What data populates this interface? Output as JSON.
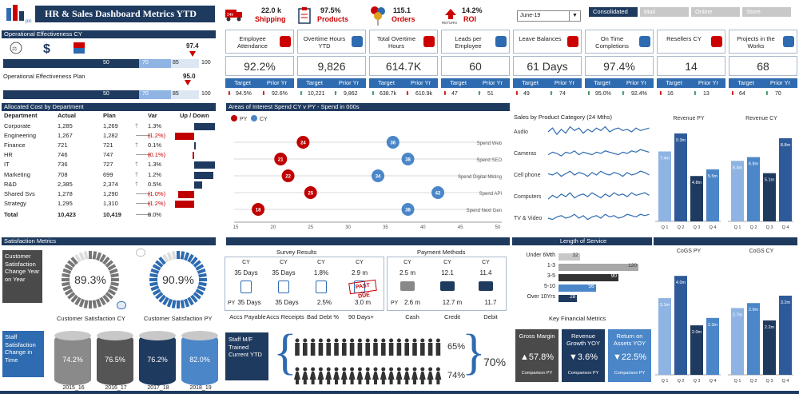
{
  "title": "HR & Sales Dashboard Metrics YTD",
  "top_kpis": [
    {
      "value": "22.0 k",
      "label": "Shipping",
      "icon": "truck-icon"
    },
    {
      "value": "97.5%",
      "label": "Products",
      "icon": "clipboard-icon"
    },
    {
      "value": "115.1",
      "label": "Orders",
      "icon": "balloons-icon"
    },
    {
      "value": "14.2%",
      "label": "ROI",
      "icon": "return-icon"
    }
  ],
  "month_select": "June-19",
  "view_tabs": [
    "Consolidated",
    "Mail",
    "Online",
    "Store"
  ],
  "op_eff_cy": {
    "title": "Operational Effectiveness CY",
    "marker": "97.4",
    "bands": [
      "50",
      "70",
      "85",
      "100"
    ]
  },
  "op_eff_plan": {
    "title": "Operational Effectiveness Plan",
    "marker": "95.0",
    "bands": [
      "50",
      "70",
      "85",
      "100"
    ]
  },
  "kpi_cards": [
    {
      "label": "Employee Attendance",
      "value": "92.2%",
      "target": "94.5%",
      "prior": "92.6%",
      "t_dir": "down",
      "p_dir": "down"
    },
    {
      "label": "Overtime Hours YTD",
      "value": "9,826",
      "target": "10,221",
      "prior": "9,862",
      "t_dir": "up",
      "p_dir": "up"
    },
    {
      "label": "Total Overtime Hours",
      "value": "614.7K",
      "target": "638.7k",
      "prior": "610.9k",
      "t_dir": "up",
      "p_dir": "down"
    },
    {
      "label": "Leads per Employee",
      "value": "60",
      "target": "47",
      "prior": "51",
      "t_dir": "down",
      "p_dir": "up"
    },
    {
      "label": "Leave Balances",
      "value": "61 Days",
      "target": "49",
      "prior": "74",
      "t_dir": "down",
      "p_dir": "up"
    },
    {
      "label": "On Time Completions",
      "value": "97.4%",
      "target": "95.0%",
      "prior": "92.4%",
      "t_dir": "up",
      "p_dir": "up"
    },
    {
      "label": "Resellers CY",
      "value": "14",
      "target": "16",
      "prior": "13",
      "t_dir": "down",
      "p_dir": "up"
    },
    {
      "label": "Projects in the Works",
      "value": "68",
      "target": "64",
      "prior": "70",
      "t_dir": "down",
      "p_dir": "up"
    }
  ],
  "kpi_headers": {
    "target": "Target",
    "prior": "Prior Yr"
  },
  "cost": {
    "title": "Allocated Cost by Department",
    "headers": [
      "Department",
      "Actual",
      "Plan",
      "Var",
      "Up / Down"
    ],
    "rows": [
      {
        "dept": "Corporate",
        "actual": "1,285",
        "plan": "1,269",
        "var": "1.3%",
        "dir": "up",
        "bar": 1.3
      },
      {
        "dept": "Engineering",
        "actual": "1,267",
        "plan": "1,282",
        "var": "(1.2%)",
        "dir": "dn",
        "bar": -1.2
      },
      {
        "dept": "Finance",
        "actual": "721",
        "plan": "721",
        "var": "0.1%",
        "dir": "up",
        "bar": 0.1
      },
      {
        "dept": "HR",
        "actual": "746",
        "plan": "747",
        "var": "(0.1%)",
        "dir": "dn",
        "bar": -0.1
      },
      {
        "dept": "IT",
        "actual": "736",
        "plan": "727",
        "var": "1.3%",
        "dir": "up",
        "bar": 1.3
      },
      {
        "dept": "Marketing",
        "actual": "708",
        "plan": "699",
        "var": "1.2%",
        "dir": "up",
        "bar": 1.2
      },
      {
        "dept": "R&D",
        "actual": "2,385",
        "plan": "2,374",
        "var": "0.5%",
        "dir": "up",
        "bar": 0.5
      },
      {
        "dept": "Shared Svs",
        "actual": "1,278",
        "plan": "1,290",
        "var": "(1.0%)",
        "dir": "dn",
        "bar": -1.0
      },
      {
        "dept": "Strategy",
        "actual": "1,295",
        "plan": "1,310",
        "var": "(1.2%)",
        "dir": "dn",
        "bar": -1.2
      }
    ],
    "total": {
      "dept": "Total",
      "actual": "10,423",
      "plan": "10,419",
      "var": "0.0%"
    }
  },
  "spend": {
    "title": "Areas of Interest Spend CY v PY - Spend in 000s",
    "legend": [
      "PY",
      "CY"
    ],
    "rows": [
      {
        "label": "Spend Web",
        "py": 24,
        "cy": 36
      },
      {
        "label": "Spend SEO",
        "py": 21,
        "cy": 38
      },
      {
        "label": "Spend Digital Mkting",
        "py": 22,
        "cy": 34
      },
      {
        "label": "Spend API",
        "py": 25,
        "cy": 42
      },
      {
        "label": "Spend Next Gen",
        "py": 18,
        "cy": 38
      }
    ],
    "ticks": [
      "15",
      "20",
      "25",
      "30",
      "35",
      "40",
      "45",
      "50"
    ]
  },
  "sales_by_product": {
    "title": "Sales by Product Category (24 Mths)",
    "items": [
      "Audio",
      "Cameras",
      "Cell phone",
      "Computers",
      "TV & Video"
    ]
  },
  "revenue_py": {
    "title": "Revenue PY",
    "values": [
      7.4,
      9.3,
      4.8,
      5.5
    ],
    "labels": [
      "7.4m",
      "9.3m",
      "4.8m",
      "5.5m"
    ],
    "quarters": [
      "Q 1",
      "Q 2",
      "Q 3",
      "Q 4"
    ]
  },
  "revenue_cy": {
    "title": "Revenue CY",
    "values": [
      6.4,
      6.8,
      5.1,
      8.8
    ],
    "labels": [
      "6.4m",
      "6.8m",
      "5.1m",
      "8.8m"
    ],
    "quarters": [
      "Q 1",
      "Q 2",
      "Q 3",
      "Q 4"
    ]
  },
  "satisfaction": {
    "title": "Satisfaction Metrics",
    "customer_box": "Customer Satisfaction Change Year on Year",
    "cy_value": "89.3%",
    "cy_label": "Customer Satisfaction CY",
    "py_value": "90.9%",
    "py_label": "Customer Satisfaction PY",
    "staff_box": "Staff Satisfaction Change in Time",
    "cylinders": [
      {
        "value": "74.2%",
        "year": "2015_16"
      },
      {
        "value": "76.5%",
        "year": "2016_17"
      },
      {
        "value": "76.2%",
        "year": "2017_18"
      },
      {
        "value": "82.0%",
        "year": "2018_19"
      }
    ]
  },
  "survey": {
    "title": "Survey Results",
    "cols": [
      {
        "cy": "CY",
        "top": "35 Days",
        "bottom": "35 Days",
        "label": "Accs Payable"
      },
      {
        "cy": "CY",
        "top": "35 Days",
        "bottom": "35 Days",
        "label": "Accs Receipts"
      },
      {
        "cy": "CY",
        "top": "1.8%",
        "bottom": "2.5%",
        "label": "Bad Debt %"
      },
      {
        "cy": "CY",
        "top": "2.9 m",
        "bottom": "3.0 m",
        "label": "90 Days+"
      }
    ],
    "py": "PY"
  },
  "payment": {
    "title": "Payment Methods",
    "cols": [
      {
        "cy": "CY",
        "top": "2.5 m",
        "bottom": "2.6 m",
        "label": "Cash"
      },
      {
        "cy": "CY",
        "top": "12.1",
        "bottom": "12.7 m",
        "label": "Credit"
      },
      {
        "cy": "CY",
        "top": "11.4",
        "bottom": "11.7",
        "label": "Debit"
      }
    ],
    "py": "PY",
    "stamp": "PAST DUE"
  },
  "staff_training": {
    "box": "Staff M/F Trained Current YTD",
    "male": "65%",
    "female": "74%",
    "total": "70%"
  },
  "length_service": {
    "title": "Length of Service",
    "rows": [
      {
        "label": "Under 6Mth",
        "value": 32
      },
      {
        "label": "1-3",
        "value": 120
      },
      {
        "label": "3-5",
        "value": 90
      },
      {
        "label": "5-10",
        "value": 56
      },
      {
        "label": "Over 10Yrs",
        "value": 28
      }
    ]
  },
  "key_fin": {
    "title": "Key Financial Metrics",
    "items": [
      {
        "label": "Gross Margin",
        "value": "▲57.8%",
        "sub": "Comparison PY"
      },
      {
        "label": "Revenue Growth YOY",
        "value": "▼3.6%",
        "sub": "Comparison PY"
      },
      {
        "label": "Return on Assets YOY",
        "value": "▼22.5%",
        "sub": "Comparison PY"
      }
    ]
  },
  "cogs_py": {
    "title": "CoGS PY",
    "values": [
      3.1,
      4.0,
      2.0,
      2.3
    ],
    "labels": [
      "3.1m",
      "4.0m",
      "2.0m",
      "2.3m"
    ],
    "quarters": [
      "Q 1",
      "Q 2",
      "Q 3",
      "Q 4"
    ]
  },
  "cogs_cy": {
    "title": "CoGS CY",
    "values": [
      2.7,
      2.9,
      2.2,
      3.2
    ],
    "labels": [
      "2.7m",
      "2.9m",
      "2.2m",
      "3.2m"
    ],
    "quarters": [
      "Q 1",
      "Q 2",
      "Q 3",
      "Q 4"
    ]
  },
  "colors": {
    "navy": "#1f3a5f",
    "blue": "#2e6bb0",
    "red": "#c00000",
    "light": "#8fb4e3"
  }
}
